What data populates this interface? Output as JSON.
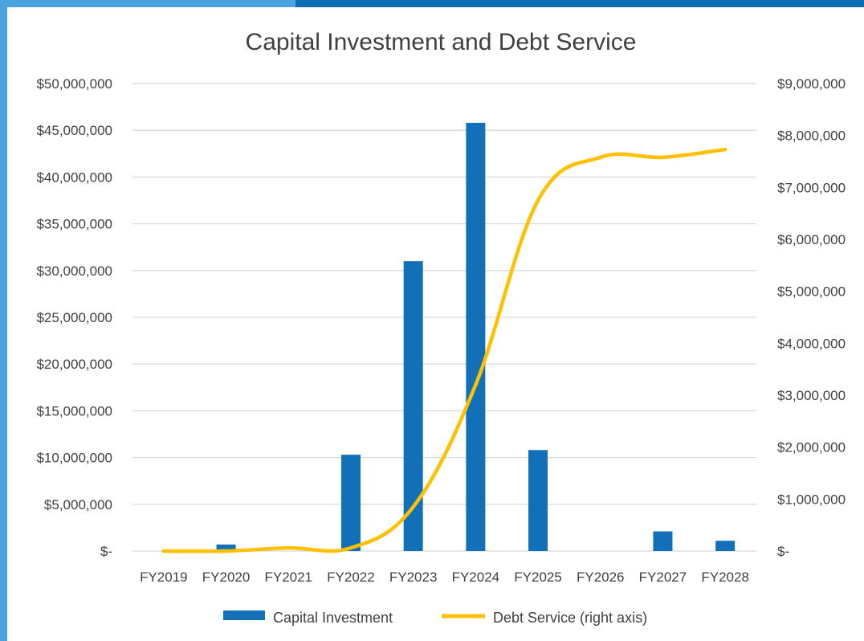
{
  "colors": {
    "frame_light": "#4aa3df",
    "frame_dark": "#0d6eb5",
    "bar": "#1170b8",
    "line": "#ffc000",
    "grid": "#d9d9d9",
    "text": "#404040"
  },
  "chart_data": {
    "type": "bar",
    "title": "Capital Investment and Debt Service",
    "categories": [
      "FY2019",
      "FY2020",
      "FY2021",
      "FY2022",
      "FY2023",
      "FY2024",
      "FY2025",
      "FY2026",
      "FY2027",
      "FY2028"
    ],
    "series": [
      {
        "name": "Capital Investment",
        "type": "bar",
        "axis": "left",
        "values": [
          0,
          700000,
          0,
          10300000,
          31000000,
          45800000,
          10800000,
          0,
          2100000,
          1100000
        ]
      },
      {
        "name": "Debt Service (right axis)",
        "type": "line",
        "axis": "right",
        "values": [
          0,
          0,
          60000,
          60000,
          850000,
          3200000,
          6750000,
          7580000,
          7580000,
          7730000
        ]
      }
    ],
    "y_left": {
      "ylim": [
        0,
        50000000
      ],
      "ticks": [
        0,
        5000000,
        10000000,
        15000000,
        20000000,
        25000000,
        30000000,
        35000000,
        40000000,
        45000000,
        50000000
      ],
      "tick_labels": [
        "$-",
        "$5,000,000",
        "$10,000,000",
        "$15,000,000",
        "$20,000,000",
        "$25,000,000",
        "$30,000,000",
        "$35,000,000",
        "$40,000,000",
        "$45,000,000",
        "$50,000,000"
      ]
    },
    "y_right": {
      "ylim": [
        0,
        9000000
      ],
      "ticks": [
        0,
        1000000,
        2000000,
        3000000,
        4000000,
        5000000,
        6000000,
        7000000,
        8000000,
        9000000
      ],
      "tick_labels": [
        "$-",
        "$1,000,000",
        "$2,000,000",
        "$3,000,000",
        "$4,000,000",
        "$5,000,000",
        "$6,000,000",
        "$7,000,000",
        "$8,000,000",
        "$9,000,000"
      ]
    },
    "grid": true,
    "legend_position": "bottom"
  }
}
